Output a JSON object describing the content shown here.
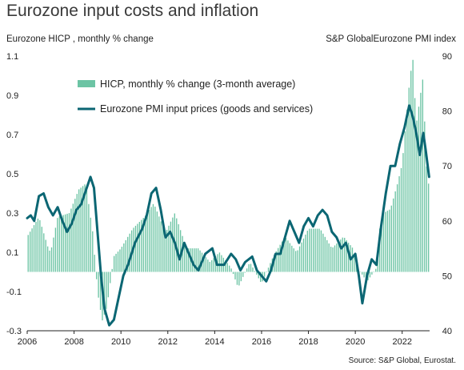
{
  "chart_data": {
    "type": "bar+line",
    "title": "Eurozone input costs and inflation",
    "y_left_label": "Eurozone HICP , monthly % change",
    "y_right_label": "S&P GlobalEurozone PMI index",
    "source": "Source: S&P Global, Eurostat.",
    "y_left_lim": [
      -0.3,
      1.1
    ],
    "y_left_ticks": [
      -0.3,
      -0.1,
      0.1,
      0.3,
      0.5,
      0.7,
      0.9,
      1.1
    ],
    "y_right_lim": [
      40,
      90
    ],
    "y_right_ticks": [
      40,
      50,
      60,
      70,
      80,
      90
    ],
    "x_range": [
      2006,
      2023.17
    ],
    "x_ticks": [
      "2006",
      "2008",
      "2010",
      "2012",
      "2014",
      "2016",
      "2018",
      "2020",
      "2022"
    ],
    "legend": {
      "placement": "top-left",
      "grid": false
    },
    "colors": {
      "bars": "#6cc4a4",
      "line": "#0b6673",
      "axis": "#222222"
    },
    "series": [
      {
        "name": "HICP, monthly % change (3-month average)",
        "kind": "bar",
        "axis": "left",
        "points": [
          [
            2006.0,
            0.18
          ],
          [
            2006.5,
            0.28
          ],
          [
            2006.9,
            0.12
          ],
          [
            2007.0,
            0.1
          ],
          [
            2007.3,
            0.28
          ],
          [
            2007.8,
            0.3
          ],
          [
            2008.2,
            0.42
          ],
          [
            2008.5,
            0.45
          ],
          [
            2008.8,
            0.2
          ],
          [
            2009.0,
            -0.1
          ],
          [
            2009.2,
            -0.25
          ],
          [
            2009.4,
            -0.18
          ],
          [
            2009.7,
            0.08
          ],
          [
            2010.0,
            0.12
          ],
          [
            2010.5,
            0.22
          ],
          [
            2011.0,
            0.28
          ],
          [
            2011.4,
            0.35
          ],
          [
            2011.9,
            0.2
          ],
          [
            2012.3,
            0.3
          ],
          [
            2012.8,
            0.12
          ],
          [
            2013.3,
            0.12
          ],
          [
            2013.8,
            0.05
          ],
          [
            2014.2,
            0.1
          ],
          [
            2014.7,
            0.02
          ],
          [
            2015.0,
            -0.08
          ],
          [
            2015.5,
            0.05
          ],
          [
            2016.0,
            -0.06
          ],
          [
            2016.5,
            0.08
          ],
          [
            2017.0,
            0.18
          ],
          [
            2017.5,
            0.1
          ],
          [
            2018.0,
            0.22
          ],
          [
            2018.5,
            0.22
          ],
          [
            2019.0,
            0.12
          ],
          [
            2019.5,
            0.18
          ],
          [
            2019.9,
            0.12
          ],
          [
            2020.1,
            0.02
          ],
          [
            2020.5,
            -0.05
          ],
          [
            2020.9,
            0.02
          ],
          [
            2021.0,
            0.2
          ],
          [
            2021.2,
            0.3
          ],
          [
            2021.5,
            0.32
          ],
          [
            2021.8,
            0.45
          ],
          [
            2022.0,
            0.55
          ],
          [
            2022.3,
            0.95
          ],
          [
            2022.45,
            1.1
          ],
          [
            2022.6,
            0.75
          ],
          [
            2022.8,
            0.92
          ],
          [
            2022.9,
            1.0
          ],
          [
            2023.0,
            0.6
          ],
          [
            2023.1,
            0.45
          ]
        ]
      },
      {
        "name": "Eurozone PMI input prices (goods and services)",
        "kind": "line",
        "axis": "right",
        "points": [
          [
            2006.0,
            60.5
          ],
          [
            2006.15,
            61.0
          ],
          [
            2006.3,
            60.0
          ],
          [
            2006.5,
            64.5
          ],
          [
            2006.7,
            65.0
          ],
          [
            2006.9,
            62.5
          ],
          [
            2007.1,
            61.0
          ],
          [
            2007.3,
            62.5
          ],
          [
            2007.5,
            60.0
          ],
          [
            2007.7,
            58.0
          ],
          [
            2007.9,
            59.5
          ],
          [
            2008.1,
            62.0
          ],
          [
            2008.3,
            63.0
          ],
          [
            2008.5,
            65.5
          ],
          [
            2008.7,
            68.0
          ],
          [
            2008.85,
            66.0
          ],
          [
            2009.0,
            58.0
          ],
          [
            2009.15,
            50.0
          ],
          [
            2009.3,
            44.0
          ],
          [
            2009.5,
            41.0
          ],
          [
            2009.7,
            42.0
          ],
          [
            2009.9,
            46.0
          ],
          [
            2010.1,
            50.0
          ],
          [
            2010.3,
            52.0
          ],
          [
            2010.6,
            56.0
          ],
          [
            2010.9,
            58.5
          ],
          [
            2011.1,
            61.0
          ],
          [
            2011.3,
            65.0
          ],
          [
            2011.5,
            66.0
          ],
          [
            2011.7,
            62.0
          ],
          [
            2011.9,
            57.0
          ],
          [
            2012.1,
            58.0
          ],
          [
            2012.3,
            56.0
          ],
          [
            2012.5,
            53.0
          ],
          [
            2012.7,
            56.0
          ],
          [
            2012.9,
            54.0
          ],
          [
            2013.1,
            52.0
          ],
          [
            2013.3,
            51.0
          ],
          [
            2013.6,
            54.0
          ],
          [
            2013.9,
            55.0
          ],
          [
            2014.1,
            52.0
          ],
          [
            2014.4,
            52.0
          ],
          [
            2014.7,
            54.0
          ],
          [
            2014.9,
            53.0
          ],
          [
            2015.1,
            51.0
          ],
          [
            2015.3,
            52.5
          ],
          [
            2015.6,
            53.5
          ],
          [
            2015.8,
            51.0
          ],
          [
            2016.0,
            50.0
          ],
          [
            2016.2,
            49.0
          ],
          [
            2016.4,
            51.0
          ],
          [
            2016.6,
            54.0
          ],
          [
            2016.8,
            54.0
          ],
          [
            2017.0,
            57.0
          ],
          [
            2017.2,
            60.0
          ],
          [
            2017.4,
            58.0
          ],
          [
            2017.6,
            56.0
          ],
          [
            2017.8,
            59.0
          ],
          [
            2018.0,
            60.5
          ],
          [
            2018.2,
            59.0
          ],
          [
            2018.4,
            61.0
          ],
          [
            2018.6,
            62.0
          ],
          [
            2018.8,
            61.0
          ],
          [
            2019.0,
            58.0
          ],
          [
            2019.2,
            57.0
          ],
          [
            2019.4,
            55.0
          ],
          [
            2019.6,
            56.0
          ],
          [
            2019.8,
            53.0
          ],
          [
            2020.0,
            54.0
          ],
          [
            2020.15,
            50.0
          ],
          [
            2020.3,
            45.0
          ],
          [
            2020.5,
            50.0
          ],
          [
            2020.7,
            53.0
          ],
          [
            2020.9,
            52.0
          ],
          [
            2021.1,
            59.0
          ],
          [
            2021.3,
            65.0
          ],
          [
            2021.5,
            70.0
          ],
          [
            2021.7,
            70.0
          ],
          [
            2021.9,
            74.0
          ],
          [
            2022.1,
            77.0
          ],
          [
            2022.3,
            81.0
          ],
          [
            2022.45,
            79.0
          ],
          [
            2022.6,
            76.0
          ],
          [
            2022.75,
            72.0
          ],
          [
            2022.9,
            76.0
          ],
          [
            2023.0,
            73.0
          ],
          [
            2023.15,
            68.0
          ]
        ]
      }
    ]
  }
}
